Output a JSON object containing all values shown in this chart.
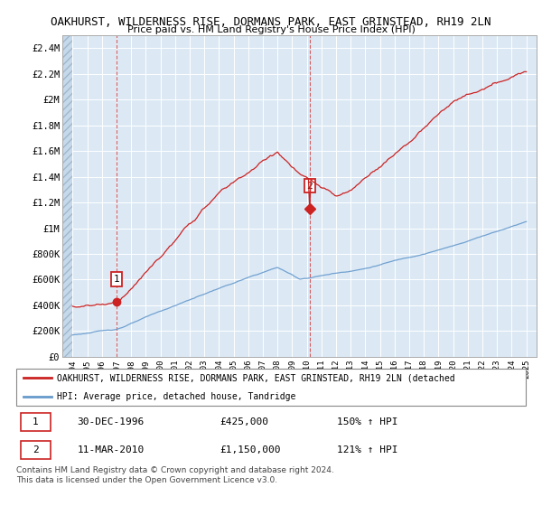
{
  "title": "OAKHURST, WILDERNESS RISE, DORMANS PARK, EAST GRINSTEAD, RH19 2LN",
  "subtitle": "Price paid vs. HM Land Registry's House Price Index (HPI)",
  "ylim": [
    0,
    2500000
  ],
  "yticks": [
    0,
    200000,
    400000,
    600000,
    800000,
    1000000,
    1200000,
    1400000,
    1600000,
    1800000,
    2000000,
    2200000,
    2400000
  ],
  "ytick_labels": [
    "£0",
    "£200K",
    "£400K",
    "£600K",
    "£800K",
    "£1M",
    "£1.2M",
    "£1.4M",
    "£1.6M",
    "£1.8M",
    "£2M",
    "£2.2M",
    "£2.4M"
  ],
  "hpi_color": "#6699cc",
  "price_color": "#cc2222",
  "annotation1_year": 1996.99,
  "annotation1_value": 425000,
  "annotation2_year": 2010.2,
  "annotation2_value": 1150000,
  "legend_line1": "OAKHURST, WILDERNESS RISE, DORMANS PARK, EAST GRINSTEAD, RH19 2LN (detached",
  "legend_line2": "HPI: Average price, detached house, Tandridge",
  "info1_num": "1",
  "info1_date": "30-DEC-1996",
  "info1_price": "£425,000",
  "info1_hpi": "150% ↑ HPI",
  "info2_num": "2",
  "info2_date": "11-MAR-2010",
  "info2_price": "£1,150,000",
  "info2_hpi": "121% ↑ HPI",
  "footer": "Contains HM Land Registry data © Crown copyright and database right 2024.\nThis data is licensed under the Open Government Licence v3.0.",
  "chart_bg": "#dce9f5",
  "hatch_color": "#b8cfe0"
}
